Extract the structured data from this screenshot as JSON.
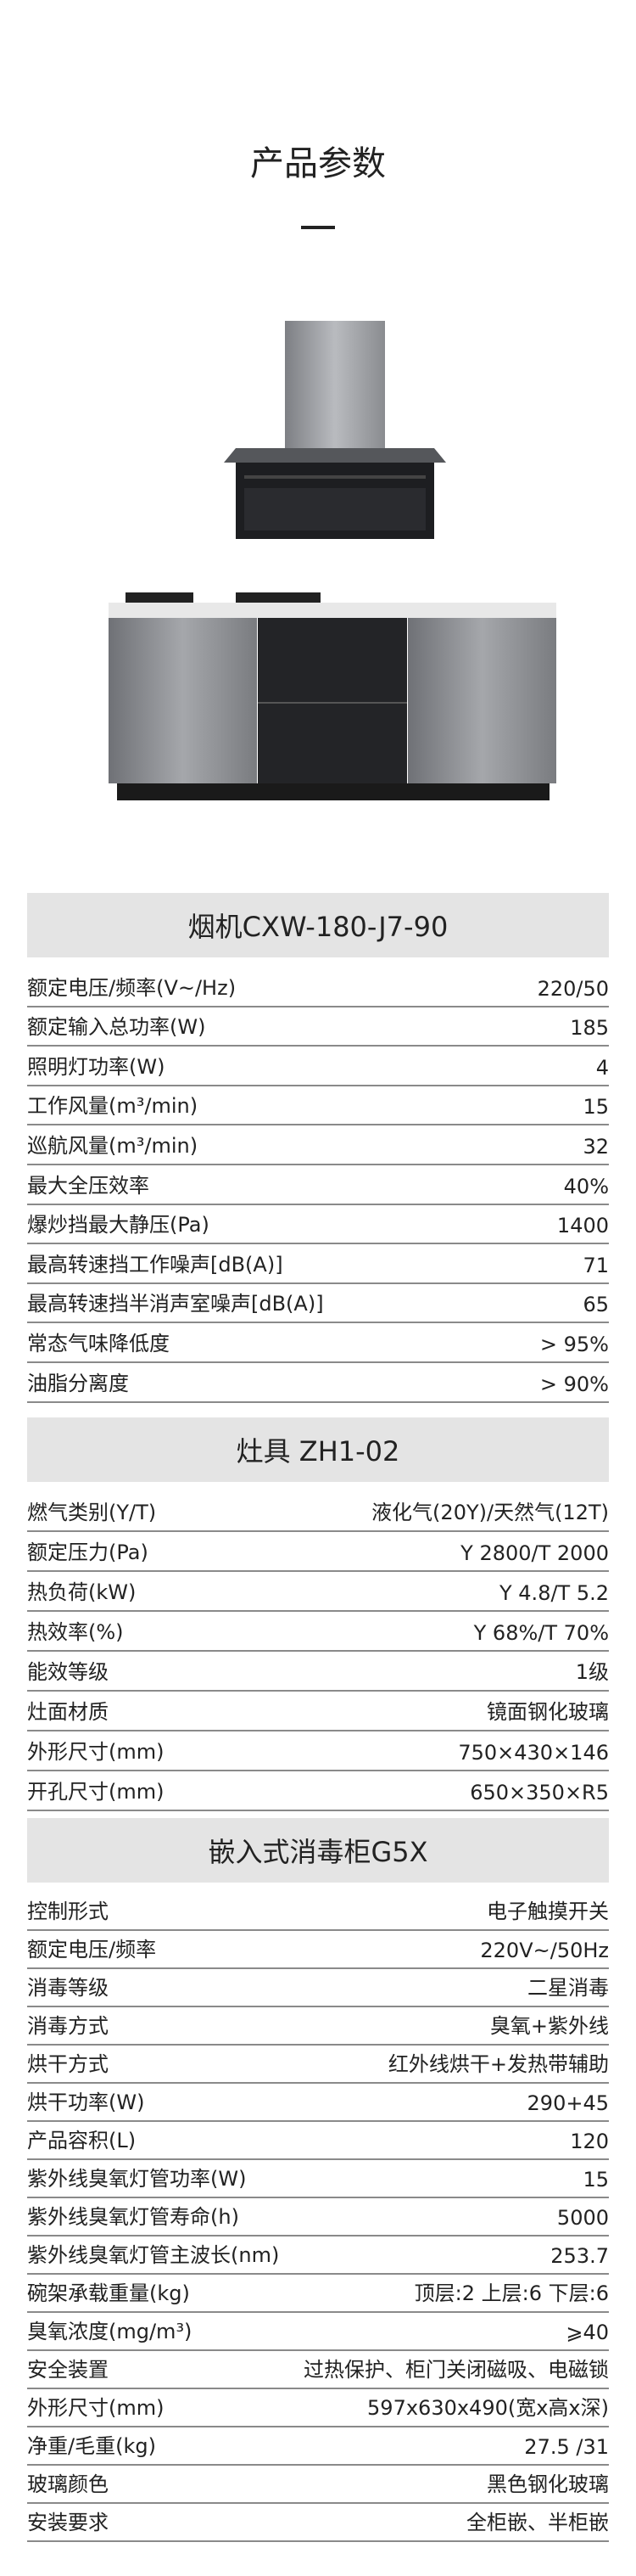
{
  "page_title": "产品参数",
  "sections": [
    {
      "title": "烟机CXW-180-J7-90",
      "rows": [
        [
          "额定电压/频率(V~/Hz)",
          "220/50"
        ],
        [
          "额定输入总功率(W)",
          "185"
        ],
        [
          "照明灯功率(W)",
          "4"
        ],
        [
          "工作风量(m³/min)",
          "15"
        ],
        [
          "巡航风量(m³/min)",
          "32"
        ],
        [
          "最大全压效率",
          "40%"
        ],
        [
          "爆炒挡最大静压(Pa)",
          "1400"
        ],
        [
          "最高转速挡工作噪声[dB(A)]",
          "71"
        ],
        [
          "最高转速挡半消声室噪声[dB(A)]",
          "65"
        ],
        [
          "常态气味降低度",
          "> 95%"
        ],
        [
          "油脂分离度",
          "> 90%"
        ]
      ]
    },
    {
      "title": "灶具 ZH1-02",
      "rows": [
        [
          "燃气类别(Y/T)",
          "液化气(20Y)/天然气(12T)"
        ],
        [
          "额定压力(Pa)",
          "Y 2800/T 2000"
        ],
        [
          "热负荷(kW)",
          "Y 4.8/T 5.2"
        ],
        [
          "热效率(%)",
          "Y 68%/T 70%"
        ],
        [
          "能效等级",
          "1级"
        ],
        [
          "灶面材质",
          "镜面钢化玻璃"
        ],
        [
          "外形尺寸(mm)",
          "750×430×146"
        ],
        [
          "开孔尺寸(mm)",
          "650×350×R5"
        ]
      ]
    },
    {
      "title": "嵌入式消毒柜G5X",
      "rows": [
        [
          "控制形式",
          "电子触摸开关"
        ],
        [
          "额定电压/频率",
          "220V~/50Hz"
        ],
        [
          "消毒等级",
          "二星消毒"
        ],
        [
          "消毒方式",
          "臭氧+紫外线"
        ],
        [
          "烘干方式",
          "红外线烘干+发热带辅助"
        ],
        [
          "烘干功率(W)",
          "290+45"
        ],
        [
          "产品容积(L)",
          "120"
        ],
        [
          "紫外线臭氧灯管功率(W)",
          "15"
        ],
        [
          "紫外线臭氧灯管寿命(h)",
          "5000"
        ],
        [
          "紫外线臭氧灯管主波长(nm)",
          "253.7"
        ],
        [
          "碗架承载重量(kg)",
          "顶层:2 上层:6 下层:6"
        ],
        [
          "臭氧浓度(mg/m³)",
          "⩾40"
        ],
        [
          "安全装置",
          "过热保护、柜门关闭磁吸、电磁锁"
        ],
        [
          "外形尺寸(mm)",
          "597x630x490(宽x高x深)"
        ],
        [
          "净重/毛重(kg)",
          "27.5 /31"
        ],
        [
          "玻璃颜色",
          "黑色钢化玻璃"
        ],
        [
          "安装要求",
          "全柜嵌、半柜嵌"
        ]
      ]
    }
  ]
}
